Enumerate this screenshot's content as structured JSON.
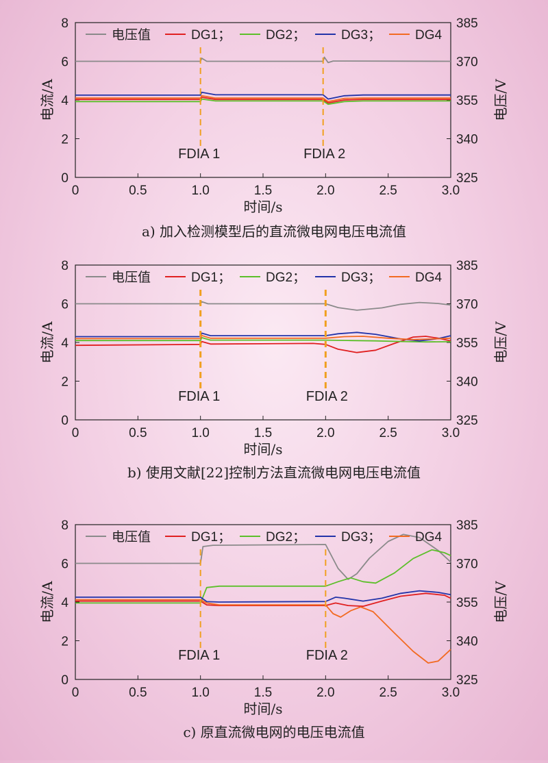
{
  "figure": {
    "background_color": "#f3d3e6",
    "series_colors": {
      "电压值": "#8a8a8a",
      "DG1": "#e02020",
      "DG2": "#5cbf2a",
      "DG3": "#2233a8",
      "DG4": "#f26a21",
      "fdia": "#f0a020"
    }
  },
  "chart_data": [
    {
      "id": "a",
      "type": "line",
      "caption": "a) 加入检测模型后的直流微电网电压电流值",
      "xlabel": "时间/s",
      "ylabel_left": "电流/A",
      "ylabel_right": "电压/V",
      "xlim": [
        0,
        3.0
      ],
      "ylim_left": [
        0,
        8
      ],
      "ylim_right": [
        325,
        385
      ],
      "x_ticks": [
        "0",
        "0.5",
        "1.0",
        "1.5",
        "2.0",
        "2.5",
        "3.0"
      ],
      "y_ticks_left": [
        "0",
        "2",
        "4",
        "6",
        "8"
      ],
      "y_ticks_right": [
        "325",
        "340",
        "355",
        "370",
        "385"
      ],
      "legend": [
        "电压值",
        "DG1；",
        "DG2；",
        "DG3；",
        "DG4"
      ],
      "legend_position": "top",
      "annotations": [
        {
          "label": "FDIA 1",
          "x": 1.0,
          "style": "dashed"
        },
        {
          "label": "FDIA 2",
          "x": 1.98,
          "style": "dashed"
        }
      ],
      "series": [
        {
          "name": "电压值",
          "axis": "right",
          "color": "#8a8a8a",
          "points": [
            [
              0,
              370
            ],
            [
              1.0,
              370
            ],
            [
              1.01,
              371.2
            ],
            [
              1.05,
              370.0
            ],
            [
              1.98,
              370
            ],
            [
              1.99,
              371.6
            ],
            [
              2.02,
              369.5
            ],
            [
              2.06,
              370.1
            ],
            [
              3.0,
              370
            ]
          ]
        },
        {
          "name": "DG1",
          "axis": "left",
          "color": "#e02020",
          "points": [
            [
              0,
              4.03
            ],
            [
              1.0,
              4.03
            ],
            [
              1.01,
              4.14
            ],
            [
              1.12,
              4.03
            ],
            [
              1.98,
              4.03
            ],
            [
              2.02,
              3.85
            ],
            [
              2.15,
              4.0
            ],
            [
              2.3,
              4.03
            ],
            [
              3.0,
              4.03
            ]
          ]
        },
        {
          "name": "DG2",
          "axis": "left",
          "color": "#5cbf2a",
          "points": [
            [
              0,
              3.92
            ],
            [
              1.0,
              3.92
            ],
            [
              1.01,
              4.05
            ],
            [
              1.12,
              3.95
            ],
            [
              1.98,
              3.95
            ],
            [
              2.02,
              3.78
            ],
            [
              2.15,
              3.92
            ],
            [
              2.3,
              3.95
            ],
            [
              3.0,
              3.95
            ]
          ]
        },
        {
          "name": "DG3",
          "axis": "left",
          "color": "#2233a8",
          "points": [
            [
              0,
              4.25
            ],
            [
              1.0,
              4.25
            ],
            [
              1.01,
              4.4
            ],
            [
              1.12,
              4.27
            ],
            [
              1.98,
              4.27
            ],
            [
              2.02,
              4.05
            ],
            [
              2.15,
              4.22
            ],
            [
              2.3,
              4.26
            ],
            [
              3.0,
              4.26
            ]
          ]
        },
        {
          "name": "DG4",
          "axis": "left",
          "color": "#f26a21",
          "points": [
            [
              0,
              4.1
            ],
            [
              1.0,
              4.1
            ],
            [
              1.01,
              4.22
            ],
            [
              1.12,
              4.1
            ],
            [
              1.98,
              4.1
            ],
            [
              2.02,
              3.92
            ],
            [
              2.15,
              4.08
            ],
            [
              2.3,
              4.1
            ],
            [
              3.0,
              4.1
            ]
          ]
        }
      ]
    },
    {
      "id": "b",
      "type": "line",
      "caption": "b) 使用文献[22]控制方法直流微电网电压电流值",
      "xlabel": "时间/s",
      "ylabel_left": "电流/A",
      "ylabel_right": "电压/V",
      "xlim": [
        0,
        3.0
      ],
      "ylim_left": [
        0,
        8
      ],
      "ylim_right": [
        325,
        385
      ],
      "x_ticks": [
        "0",
        "0.5",
        "1.0",
        "1.5",
        "2.0",
        "2.5",
        "3.0"
      ],
      "y_ticks_left": [
        "0",
        "2",
        "4",
        "6",
        "8"
      ],
      "y_ticks_right": [
        "325",
        "340",
        "355",
        "370",
        "385"
      ],
      "legend": [
        "电压值",
        "DG1；",
        "DG2；",
        "DG3；",
        "DG4"
      ],
      "legend_position": "top",
      "annotations": [
        {
          "label": "FDIA 1",
          "x": 1.0,
          "style": "dashed"
        },
        {
          "label": "FDIA 2",
          "x": 2.0,
          "style": "dashed"
        }
      ],
      "series": [
        {
          "name": "电压值",
          "axis": "right",
          "color": "#8a8a8a",
          "points": [
            [
              0,
              370
            ],
            [
              1.0,
              370
            ],
            [
              1.01,
              370.8
            ],
            [
              1.06,
              370
            ],
            [
              2.0,
              370
            ],
            [
              2.1,
              368.5
            ],
            [
              2.25,
              367.5
            ],
            [
              2.45,
              368.4
            ],
            [
              2.6,
              369.8
            ],
            [
              2.75,
              370.5
            ],
            [
              2.9,
              370.1
            ],
            [
              3.0,
              369.5
            ]
          ]
        },
        {
          "name": "DG1",
          "axis": "left",
          "color": "#e02020",
          "points": [
            [
              0,
              3.85
            ],
            [
              1.0,
              3.9
            ],
            [
              1.01,
              4.05
            ],
            [
              1.08,
              3.92
            ],
            [
              1.9,
              3.95
            ],
            [
              2.0,
              3.9
            ],
            [
              2.1,
              3.65
            ],
            [
              2.25,
              3.48
            ],
            [
              2.4,
              3.6
            ],
            [
              2.55,
              3.95
            ],
            [
              2.7,
              4.28
            ],
            [
              2.8,
              4.32
            ],
            [
              2.9,
              4.22
            ],
            [
              3.0,
              4.08
            ]
          ]
        },
        {
          "name": "DG2",
          "axis": "left",
          "color": "#5cbf2a",
          "points": [
            [
              0,
              4.1
            ],
            [
              1.0,
              4.1
            ],
            [
              1.01,
              4.25
            ],
            [
              1.08,
              4.12
            ],
            [
              2.0,
              4.12
            ],
            [
              2.2,
              4.1
            ],
            [
              2.4,
              4.08
            ],
            [
              2.6,
              4.05
            ],
            [
              2.8,
              4.03
            ],
            [
              3.0,
              4.04
            ]
          ]
        },
        {
          "name": "DG3",
          "axis": "left",
          "color": "#2233a8",
          "points": [
            [
              0,
              4.3
            ],
            [
              1.0,
              4.3
            ],
            [
              1.01,
              4.48
            ],
            [
              1.08,
              4.35
            ],
            [
              2.0,
              4.35
            ],
            [
              2.1,
              4.45
            ],
            [
              2.25,
              4.52
            ],
            [
              2.4,
              4.42
            ],
            [
              2.6,
              4.18
            ],
            [
              2.75,
              4.08
            ],
            [
              2.9,
              4.2
            ],
            [
              3.0,
              4.35
            ]
          ]
        },
        {
          "name": "DG4",
          "axis": "left",
          "color": "#f26a21",
          "points": [
            [
              0,
              4.2
            ],
            [
              1.0,
              4.2
            ],
            [
              1.01,
              4.36
            ],
            [
              1.08,
              4.22
            ],
            [
              2.0,
              4.22
            ],
            [
              2.15,
              4.3
            ],
            [
              2.3,
              4.32
            ],
            [
              2.5,
              4.22
            ],
            [
              2.7,
              4.15
            ],
            [
              2.85,
              4.18
            ],
            [
              3.0,
              4.22
            ]
          ]
        }
      ]
    },
    {
      "id": "c",
      "type": "line",
      "caption": "c) 原直流微电网的电压电流值",
      "xlabel": "时间/s",
      "ylabel_left": "电流/A",
      "ylabel_right": "电压/V",
      "xlim": [
        0,
        3.0
      ],
      "ylim_left": [
        0,
        8
      ],
      "ylim_right": [
        325,
        385
      ],
      "x_ticks": [
        "0",
        "0.5",
        "1.0",
        "1.5",
        "2.0",
        "2.5",
        "3.0"
      ],
      "y_ticks_left": [
        "0",
        "2",
        "4",
        "6",
        "8"
      ],
      "y_ticks_right": [
        "325",
        "340",
        "355",
        "370",
        "385"
      ],
      "legend": [
        "电压值",
        "DG1；",
        "DG2；",
        "DG3；",
        "DG4"
      ],
      "legend_position": "top",
      "annotations": [
        {
          "label": "FDIA 1",
          "x": 1.0,
          "style": "dashed"
        },
        {
          "label": "FDIA 2",
          "x": 2.0,
          "style": "dashed"
        }
      ],
      "series": [
        {
          "name": "电压值",
          "axis": "right",
          "color": "#8a8a8a",
          "points": [
            [
              0,
              370
            ],
            [
              1.0,
              370
            ],
            [
              1.02,
              376.5
            ],
            [
              1.1,
              377.0
            ],
            [
              2.0,
              377.3
            ],
            [
              2.1,
              368
            ],
            [
              2.18,
              363.8
            ],
            [
              2.25,
              366
            ],
            [
              2.35,
              372
            ],
            [
              2.5,
              378.5
            ],
            [
              2.62,
              381.2
            ],
            [
              2.75,
              380
            ],
            [
              2.9,
              375
            ],
            [
              3.0,
              370.5
            ]
          ]
        },
        {
          "name": "DG1",
          "axis": "left",
          "color": "#e02020",
          "points": [
            [
              0,
              4.05
            ],
            [
              1.0,
              4.05
            ],
            [
              1.05,
              3.85
            ],
            [
              1.15,
              3.82
            ],
            [
              2.0,
              3.82
            ],
            [
              2.08,
              3.95
            ],
            [
              2.18,
              3.82
            ],
            [
              2.3,
              3.78
            ],
            [
              2.45,
              4.05
            ],
            [
              2.6,
              4.3
            ],
            [
              2.8,
              4.45
            ],
            [
              2.95,
              4.35
            ],
            [
              3.0,
              4.2
            ]
          ]
        },
        {
          "name": "DG2",
          "axis": "left",
          "color": "#5cbf2a",
          "points": [
            [
              0,
              3.95
            ],
            [
              1.0,
              3.95
            ],
            [
              1.05,
              4.75
            ],
            [
              1.15,
              4.82
            ],
            [
              2.0,
              4.82
            ],
            [
              2.1,
              5.05
            ],
            [
              2.2,
              5.25
            ],
            [
              2.3,
              5.05
            ],
            [
              2.4,
              4.98
            ],
            [
              2.55,
              5.5
            ],
            [
              2.7,
              6.25
            ],
            [
              2.85,
              6.7
            ],
            [
              2.95,
              6.55
            ],
            [
              3.0,
              6.4
            ]
          ]
        },
        {
          "name": "DG3",
          "axis": "left",
          "color": "#2233a8",
          "points": [
            [
              0,
              4.25
            ],
            [
              1.0,
              4.25
            ],
            [
              1.05,
              4.02
            ],
            [
              1.15,
              4.0
            ],
            [
              2.0,
              4.03
            ],
            [
              2.08,
              4.25
            ],
            [
              2.15,
              4.2
            ],
            [
              2.3,
              4.05
            ],
            [
              2.45,
              4.2
            ],
            [
              2.6,
              4.45
            ],
            [
              2.75,
              4.58
            ],
            [
              2.9,
              4.5
            ],
            [
              3.0,
              4.38
            ]
          ]
        },
        {
          "name": "DG4",
          "axis": "left",
          "color": "#f26a21",
          "points": [
            [
              0,
              4.12
            ],
            [
              1.0,
              4.12
            ],
            [
              1.05,
              3.95
            ],
            [
              1.15,
              3.85
            ],
            [
              2.0,
              3.85
            ],
            [
              2.06,
              3.4
            ],
            [
              2.12,
              3.22
            ],
            [
              2.2,
              3.55
            ],
            [
              2.28,
              3.75
            ],
            [
              2.38,
              3.5
            ],
            [
              2.55,
              2.4
            ],
            [
              2.7,
              1.45
            ],
            [
              2.82,
              0.85
            ],
            [
              2.9,
              0.95
            ],
            [
              3.0,
              1.55
            ]
          ]
        }
      ]
    }
  ]
}
